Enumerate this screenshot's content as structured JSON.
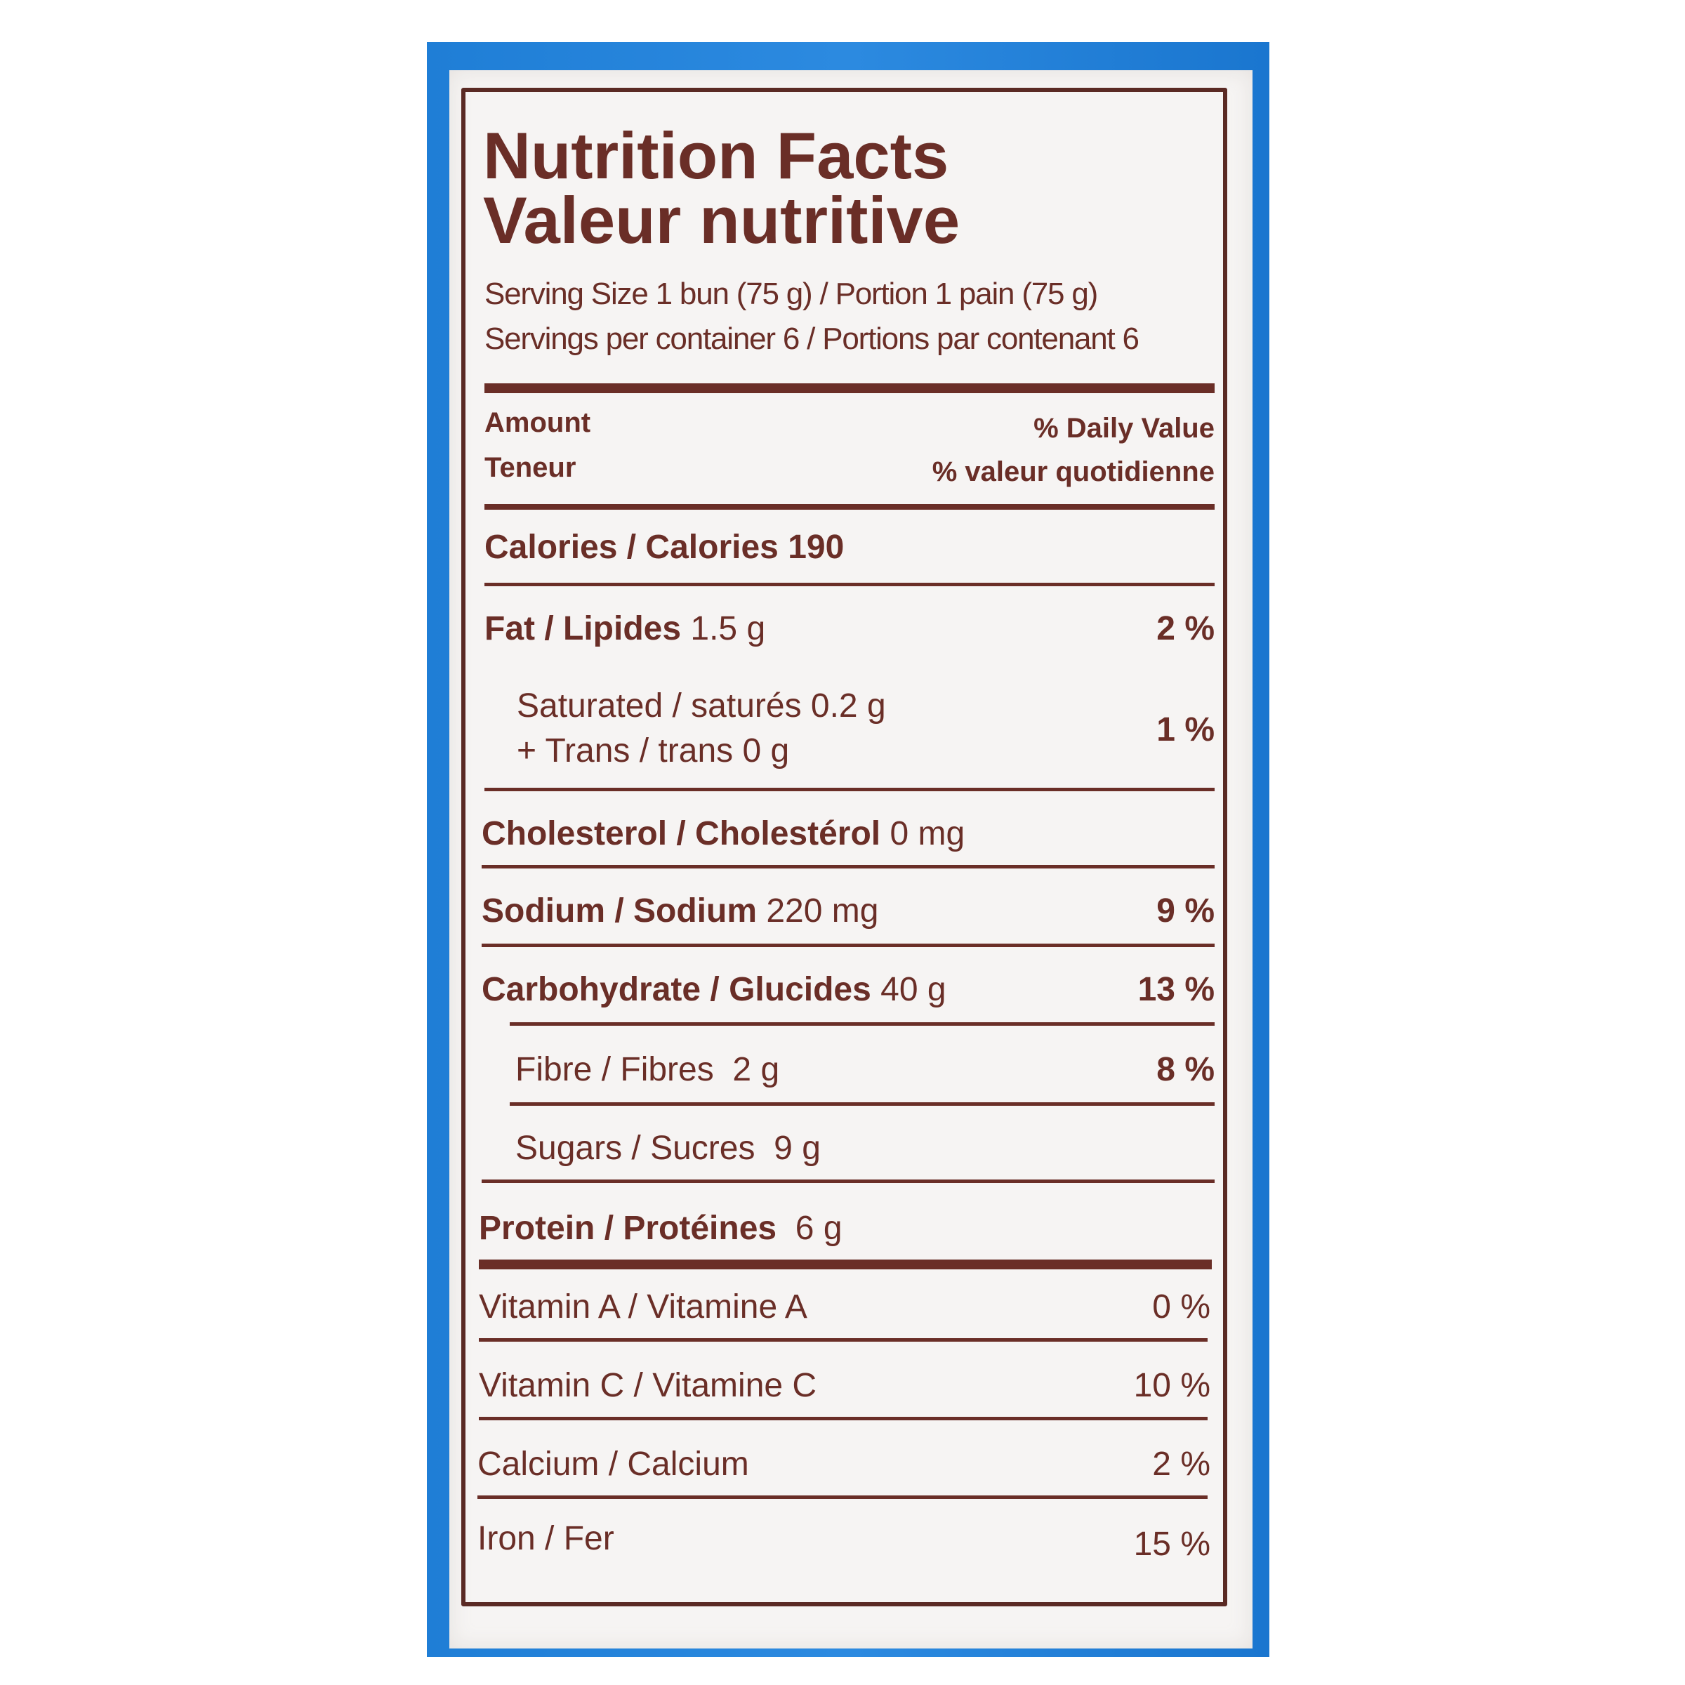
{
  "title_en": "Nutrition Facts",
  "title_fr": "Valeur nutritive",
  "serving_size": "Serving Size 1 bun (75 g) / Portion 1 pain (75 g)",
  "servings_per": "Servings per container 6 / Portions par contenant 6",
  "header": {
    "amount_en": "Amount",
    "amount_fr": "Teneur",
    "dv_en": "% Daily Value",
    "dv_fr": "% valeur quotidienne"
  },
  "calories": {
    "label": "Calories / Calories",
    "value": "190"
  },
  "fat": {
    "label": "Fat / Lipides",
    "amount": "1.5 g",
    "dv": "2 %"
  },
  "saturated": {
    "line1": "Saturated / saturés 0.2 g",
    "line2": "+ Trans / trans 0 g",
    "dv": "1 %"
  },
  "cholesterol": {
    "label": "Cholesterol / Cholestérol",
    "amount": "0 mg"
  },
  "sodium": {
    "label": "Sodium / Sodium",
    "amount": "220 mg",
    "dv": "9 %"
  },
  "carbohydrate": {
    "label": "Carbohydrate / Glucides",
    "amount": "40 g",
    "dv": "13 %"
  },
  "fibre": {
    "label": "Fibre / Fibres",
    "amount": "2 g",
    "dv": "8 %"
  },
  "sugars": {
    "label": "Sugars / Sucres",
    "amount": "9 g"
  },
  "protein": {
    "label": "Protein / Protéines",
    "amount": "6 g"
  },
  "vitamins": [
    {
      "label": "Vitamin A / Vitamine A",
      "dv": "0 %"
    },
    {
      "label": "Vitamin C / Vitamine C",
      "dv": "10 %"
    },
    {
      "label": "Calcium / Calcium",
      "dv": "2 %"
    },
    {
      "label": "Iron / Fer",
      "dv": "15 %"
    }
  ],
  "colors": {
    "text": "#6a2e27",
    "package": "#1f7ed6",
    "panel": "#f6f4f3"
  }
}
